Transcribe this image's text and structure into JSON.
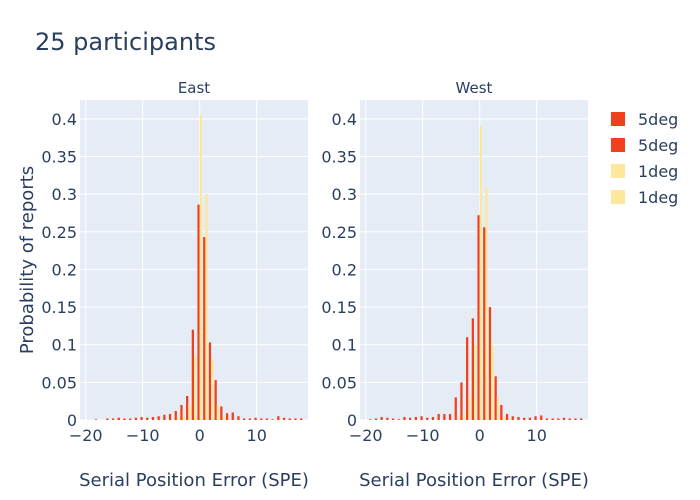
{
  "title": "25 participants",
  "chart_data": {
    "type": "bar",
    "ylabel": "Probability of reports",
    "xlabel": "Serial Position Error (SPE)",
    "xlim": [
      -21,
      19
    ],
    "ylim": [
      0,
      0.425
    ],
    "yticks": [
      0,
      0.05,
      0.1,
      0.15,
      0.2,
      0.25,
      0.3,
      0.35,
      0.4
    ],
    "ytick_labels": [
      "0",
      "0.05",
      "0.1",
      "0.15",
      "0.2",
      "0.25",
      "0.3",
      "0.35",
      "0.4"
    ],
    "xticks": [
      -20,
      -10,
      0,
      10
    ],
    "xtick_labels": [
      "−20",
      "−10",
      "0",
      "10"
    ],
    "legend": [
      {
        "name": "5deg",
        "color": "#f0411f"
      },
      {
        "name": "5deg",
        "color": "#f0411f"
      },
      {
        "name": "1deg",
        "color": "#fce79a"
      },
      {
        "name": "1deg",
        "color": "#fce79a"
      }
    ],
    "colors": {
      "5deg": "#f0411f",
      "1deg": "#fce79a",
      "plot_bg": "#e5ecf6",
      "grid": "#ffffff"
    },
    "x": [
      -20,
      -19,
      -18,
      -17,
      -16,
      -15,
      -14,
      -13,
      -12,
      -11,
      -10,
      -9,
      -8,
      -7,
      -6,
      -5,
      -4,
      -3,
      -2,
      -1,
      0,
      1,
      2,
      3,
      4,
      5,
      6,
      7,
      8,
      9,
      10,
      11,
      12,
      13,
      14,
      15,
      16,
      17,
      18
    ],
    "panels": [
      {
        "name": "East",
        "series": [
          {
            "name": "5deg",
            "values": [
              0,
              0,
              0.001,
              0,
              0.002,
              0.002,
              0.003,
              0.002,
              0.002,
              0.003,
              0.004,
              0.003,
              0.004,
              0.005,
              0.007,
              0.008,
              0.012,
              0.02,
              0.032,
              0.12,
              0.286,
              0.243,
              0.103,
              0.053,
              0.018,
              0.009,
              0.01,
              0.005,
              0.002,
              0.002,
              0.003,
              0.002,
              0.002,
              0.001,
              0.005,
              0.003,
              0.002,
              0.002,
              0.002
            ]
          },
          {
            "name": "1deg",
            "values": [
              0,
              0,
              0,
              0,
              0,
              0,
              0,
              0,
              0,
              0,
              0,
              0,
              0,
              0,
              0,
              0.002,
              0.004,
              0.008,
              0.02,
              0.085,
              0.405,
              0.3,
              0.08,
              0.02,
              0.005,
              0.002,
              0,
              0,
              0,
              0,
              0,
              0,
              0,
              0,
              0,
              0,
              0,
              0,
              0
            ]
          }
        ]
      },
      {
        "name": "West",
        "series": [
          {
            "name": "5deg",
            "values": [
              0,
              0.001,
              0.002,
              0.004,
              0.003,
              0.002,
              0.001,
              0.004,
              0.003,
              0.004,
              0.005,
              0.003,
              0.004,
              0.008,
              0.008,
              0.008,
              0.03,
              0.05,
              0.11,
              0.135,
              0.272,
              0.256,
              0.15,
              0.058,
              0.02,
              0.008,
              0.005,
              0.004,
              0.003,
              0.003,
              0.005,
              0.006,
              0.002,
              0.002,
              0.002,
              0.003,
              0.002,
              0.002,
              0.002
            ]
          },
          {
            "name": "1deg",
            "values": [
              0,
              0,
              0,
              0,
              0,
              0,
              0,
              0,
              0,
              0,
              0,
              0,
              0,
              0,
              0,
              0,
              0.003,
              0.008,
              0.03,
              0.1,
              0.39,
              0.308,
              0.1,
              0.03,
              0.005,
              0.002,
              0,
              0,
              0,
              0,
              0,
              0,
              0,
              0,
              0,
              0,
              0,
              0,
              0
            ]
          }
        ]
      }
    ]
  }
}
